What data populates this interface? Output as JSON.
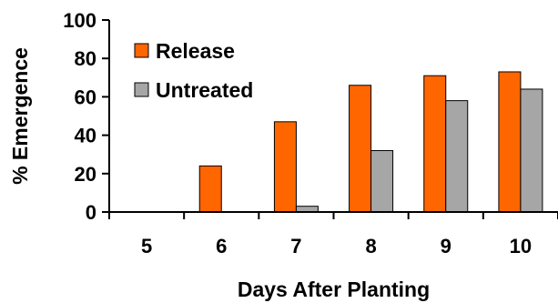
{
  "chart_data": {
    "type": "bar",
    "categories": [
      "5",
      "6",
      "7",
      "8",
      "9",
      "10"
    ],
    "series": [
      {
        "name": "Release",
        "values": [
          0,
          24,
          47,
          66,
          71,
          73
        ],
        "color": "#FF6600"
      },
      {
        "name": "Untreated",
        "values": [
          0,
          0,
          3,
          32,
          58,
          64
        ],
        "color": "#A6A6A6"
      }
    ],
    "xlabel": "Days After Planting",
    "ylabel": "% Emergence",
    "ylim": [
      0,
      100
    ],
    "yticks": [
      0,
      20,
      40,
      60,
      80,
      100
    ],
    "grid": false,
    "legend_position": "top-left"
  }
}
